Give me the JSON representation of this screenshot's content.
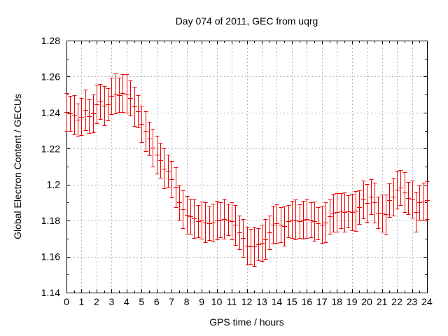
{
  "title": "Day 074 of 2011, GEC from uqrg",
  "x_axis": {
    "label": "GPS time / hours",
    "min": 0,
    "max": 24,
    "tick_step": 1,
    "minor_tick_step": 0.5,
    "tick_labels": [
      "0",
      "1",
      "2",
      "3",
      "4",
      "5",
      "6",
      "7",
      "8",
      "9",
      "10",
      "11",
      "12",
      "13",
      "14",
      "15",
      "16",
      "17",
      "18",
      "19",
      "20",
      "21",
      "22",
      "23",
      "24"
    ]
  },
  "y_axis": {
    "label": "Global Electron Content / GECUs",
    "min": 1.14,
    "max": 1.28,
    "tick_step": 0.02,
    "minor_tick_step": 0.01,
    "tick_labels": [
      "1.14",
      "1.16",
      "1.18",
      "1.2",
      "1.22",
      "1.24",
      "1.26",
      "1.28"
    ]
  },
  "colors": {
    "data": "#ee0000",
    "grid": "#b4b4b4",
    "frame": "#000000",
    "background": "#ffffff",
    "text": "#000000"
  },
  "chart_data": {
    "type": "scatter",
    "style": "points-with-yerrorbars",
    "title": "Day 074 of 2011, GEC from uqrg",
    "xlabel": "GPS time / hours",
    "ylabel": "Global Electron Content / GECUs",
    "xlim": [
      0,
      24
    ],
    "ylim": [
      1.14,
      1.28
    ],
    "grid": true,
    "sample_interval_hours": 0.25,
    "x": [
      0,
      0.25,
      0.5,
      0.75,
      1,
      1.25,
      1.5,
      1.75,
      2,
      2.25,
      2.5,
      2.75,
      3,
      3.25,
      3.5,
      3.75,
      4,
      4.25,
      4.5,
      4.75,
      5,
      5.25,
      5.5,
      5.75,
      6,
      6.25,
      6.5,
      6.75,
      7,
      7.25,
      7.5,
      7.75,
      8,
      8.25,
      8.5,
      8.75,
      9,
      9.25,
      9.5,
      9.75,
      10,
      10.25,
      10.5,
      10.75,
      11,
      11.25,
      11.5,
      11.75,
      12,
      12.25,
      12.5,
      12.75,
      13,
      13.25,
      13.5,
      13.75,
      14,
      14.25,
      14.5,
      14.75,
      15,
      15.25,
      15.5,
      15.75,
      16,
      16.25,
      16.5,
      16.75,
      17,
      17.25,
      17.5,
      17.75,
      18,
      18.25,
      18.5,
      18.75,
      19,
      19.25,
      19.5,
      19.75,
      20,
      20.25,
      20.5,
      20.75,
      21,
      21.25,
      21.5,
      21.75,
      22,
      22.25,
      22.5,
      22.75,
      23,
      23.25,
      23.5,
      23.75,
      24
    ],
    "y": [
      1.2404,
      1.2396,
      1.2388,
      1.2362,
      1.2378,
      1.2415,
      1.238,
      1.2396,
      1.2448,
      1.246,
      1.2438,
      1.2446,
      1.2492,
      1.2506,
      1.2498,
      1.251,
      1.2506,
      1.2482,
      1.2434,
      1.2406,
      1.2338,
      1.2298,
      1.2256,
      1.2204,
      1.2166,
      1.2134,
      1.209,
      1.2076,
      1.203,
      1.1986,
      1.19,
      1.1862,
      1.1832,
      1.1824,
      1.1812,
      1.1798,
      1.1802,
      1.179,
      1.1784,
      1.179,
      1.1802,
      1.1806,
      1.181,
      1.1806,
      1.1798,
      1.1776,
      1.1734,
      1.1702,
      1.166,
      1.1656,
      1.1656,
      1.1668,
      1.1676,
      1.1696,
      1.1734,
      1.1778,
      1.1784,
      1.1778,
      1.177,
      1.1796,
      1.1806,
      1.1806,
      1.1796,
      1.1806,
      1.181,
      1.1806,
      1.1796,
      1.1784,
      1.1778,
      1.179,
      1.1822,
      1.1842,
      1.1846,
      1.1854,
      1.1848,
      1.185,
      1.1848,
      1.1854,
      1.1874,
      1.1919,
      1.1897,
      1.1932,
      1.19,
      1.1845,
      1.1841,
      1.1835,
      1.1913,
      1.1932,
      1.1971,
      1.1984,
      1.1958,
      1.1926,
      1.1919,
      1.1848,
      1.19,
      1.1906,
      1.1913
    ],
    "yerr": [
      0.0106,
      0.0097,
      0.011,
      0.0089,
      0.0102,
      0.0111,
      0.0094,
      0.0105,
      0.0106,
      0.0097,
      0.011,
      0.0089,
      0.0102,
      0.0111,
      0.0094,
      0.0105,
      0.0106,
      0.0097,
      0.011,
      0.0089,
      0.0102,
      0.0111,
      0.0094,
      0.0105,
      0.0106,
      0.0097,
      0.011,
      0.0089,
      0.0102,
      0.0111,
      0.0094,
      0.0105,
      0.0106,
      0.0097,
      0.011,
      0.0089,
      0.0102,
      0.0111,
      0.0094,
      0.0105,
      0.0106,
      0.0097,
      0.011,
      0.0089,
      0.0102,
      0.0111,
      0.0094,
      0.0105,
      0.0106,
      0.0097,
      0.011,
      0.0089,
      0.0102,
      0.0111,
      0.0094,
      0.0105,
      0.0106,
      0.0097,
      0.011,
      0.0089,
      0.0102,
      0.0111,
      0.0094,
      0.0105,
      0.0106,
      0.0097,
      0.011,
      0.0089,
      0.0102,
      0.0111,
      0.0094,
      0.0105,
      0.0106,
      0.0097,
      0.011,
      0.0089,
      0.0102,
      0.0111,
      0.0094,
      0.0105,
      0.0106,
      0.0097,
      0.011,
      0.0089,
      0.0102,
      0.0111,
      0.0094,
      0.0105,
      0.0106,
      0.0097,
      0.011,
      0.0089,
      0.0102,
      0.0111,
      0.0094,
      0.0105,
      0.0106
    ],
    "legend": null
  }
}
